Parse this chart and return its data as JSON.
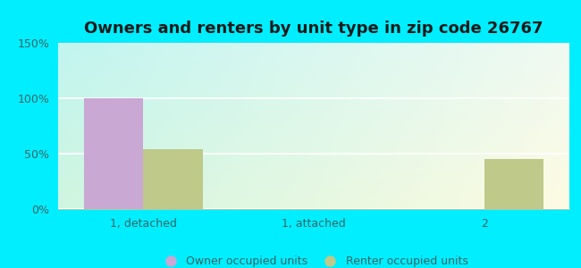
{
  "title": "Owners and renters by unit type in zip code 26767",
  "categories": [
    "1, detached",
    "1, attached",
    "2"
  ],
  "owner_values": [
    100,
    0,
    0
  ],
  "renter_values": [
    54,
    0,
    45
  ],
  "owner_color": "#c9a8d4",
  "renter_color": "#bec98a",
  "ylim": [
    0,
    150
  ],
  "yticks": [
    0,
    50,
    100,
    150
  ],
  "ytick_labels": [
    "0%",
    "50%",
    "100%",
    "150%"
  ],
  "bar_width": 0.35,
  "legend_owner": "Owner occupied units",
  "legend_renter": "Renter occupied units",
  "outer_bg": "#00eeff",
  "plot_gradient_topleft": "#c2f5f0",
  "plot_gradient_bottomright": "#f0faf2",
  "title_fontsize": 13,
  "tick_fontsize": 9,
  "legend_fontsize": 9
}
